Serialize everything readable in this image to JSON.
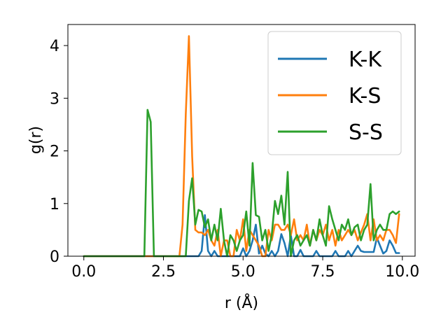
{
  "chart_data": {
    "type": "line",
    "title": "",
    "xlabel": "r (Å)",
    "ylabel": "g(r)",
    "xlim": [
      -0.5,
      10.4
    ],
    "ylim": [
      0,
      4.4
    ],
    "xticks": [
      0.0,
      2.5,
      5.0,
      7.5,
      10.0
    ],
    "xtick_labels": [
      "0.0",
      "2.5",
      "5.0",
      "7.5",
      "10.0"
    ],
    "yticks": [
      0,
      1,
      2,
      3,
      4
    ],
    "ytick_labels": [
      "0",
      "1",
      "2",
      "3",
      "4"
    ],
    "grid": false,
    "legend_position": "top-right",
    "series": [
      {
        "name": "K-K",
        "color": "#1f77b4",
        "x": [
          0.0,
          3.6,
          3.7,
          3.8,
          3.9,
          4.0,
          4.1,
          4.2,
          4.3,
          4.9,
          5.0,
          5.1,
          5.2,
          5.3,
          5.4,
          5.5,
          5.6,
          5.7,
          5.8,
          5.9,
          6.0,
          6.1,
          6.2,
          6.3,
          6.4,
          6.5,
          6.6,
          6.7,
          6.8,
          6.9,
          7.0,
          7.1,
          7.2,
          7.3,
          7.4,
          7.5,
          7.6,
          7.7,
          7.8,
          7.9,
          8.0,
          8.1,
          8.2,
          8.3,
          8.4,
          8.5,
          8.6,
          8.7,
          8.8,
          8.9,
          9.0,
          9.1,
          9.2,
          9.3,
          9.4,
          9.5,
          9.6,
          9.7,
          9.8,
          9.9
        ],
        "values": [
          0.0,
          0.0,
          0.1,
          0.78,
          0.1,
          0.0,
          0.1,
          0.0,
          0.0,
          0.0,
          0.15,
          0.0,
          0.1,
          0.3,
          0.6,
          0.05,
          0.2,
          0.05,
          0.0,
          0.1,
          0.0,
          0.1,
          0.42,
          0.25,
          0.0,
          0.4,
          0.0,
          0.0,
          0.12,
          0.0,
          0.0,
          0.0,
          0.0,
          0.1,
          0.0,
          0.0,
          0.0,
          0.0,
          0.0,
          0.1,
          0.0,
          0.0,
          0.0,
          0.1,
          0.0,
          0.1,
          0.2,
          0.1,
          0.08,
          0.08,
          0.08,
          0.08,
          0.35,
          0.2,
          0.05,
          0.1,
          0.3,
          0.2,
          0.06,
          0.06
        ]
      },
      {
        "name": "K-S",
        "color": "#ff7f0e",
        "x": [
          0.0,
          3.0,
          3.1,
          3.2,
          3.3,
          3.4,
          3.5,
          3.6,
          3.7,
          3.8,
          3.9,
          4.0,
          4.1,
          4.2,
          4.3,
          4.4,
          4.5,
          4.6,
          4.7,
          4.8,
          4.9,
          5.0,
          5.1,
          5.2,
          5.3,
          5.4,
          5.5,
          5.6,
          5.7,
          5.8,
          5.9,
          6.0,
          6.1,
          6.2,
          6.3,
          6.4,
          6.5,
          6.6,
          6.7,
          6.8,
          6.9,
          7.0,
          7.1,
          7.2,
          7.3,
          7.4,
          7.5,
          7.6,
          7.7,
          7.8,
          7.9,
          8.0,
          8.1,
          8.2,
          8.3,
          8.4,
          8.5,
          8.6,
          8.7,
          8.8,
          8.9,
          9.0,
          9.1,
          9.2,
          9.3,
          9.4,
          9.5,
          9.6,
          9.7,
          9.8,
          9.9
        ],
        "values": [
          0.0,
          0.0,
          0.6,
          2.7,
          4.18,
          1.9,
          0.5,
          0.45,
          0.45,
          0.4,
          0.5,
          0.3,
          0.2,
          0.5,
          0.0,
          0.3,
          0.3,
          0.0,
          0.0,
          0.5,
          0.3,
          0.7,
          0.1,
          0.5,
          0.4,
          0.3,
          0.2,
          0.0,
          0.0,
          0.5,
          0.3,
          0.6,
          0.6,
          0.5,
          0.5,
          0.6,
          0.4,
          0.7,
          0.3,
          0.4,
          0.3,
          0.6,
          0.2,
          0.5,
          0.3,
          0.5,
          0.4,
          0.6,
          0.3,
          0.5,
          0.2,
          0.5,
          0.3,
          0.4,
          0.5,
          0.4,
          0.5,
          0.3,
          0.45,
          0.6,
          0.8,
          0.3,
          0.7,
          0.3,
          0.4,
          0.3,
          0.5,
          0.5,
          0.4,
          0.25,
          0.8
        ]
      },
      {
        "name": "S-S",
        "color": "#2ca02c",
        "x": [
          0.0,
          1.9,
          2.0,
          2.1,
          2.2,
          2.3,
          3.2,
          3.3,
          3.4,
          3.5,
          3.6,
          3.7,
          3.8,
          3.9,
          4.0,
          4.1,
          4.2,
          4.3,
          4.4,
          4.5,
          4.6,
          4.7,
          4.8,
          4.9,
          5.0,
          5.1,
          5.2,
          5.3,
          5.4,
          5.5,
          5.6,
          5.7,
          5.8,
          5.9,
          6.0,
          6.1,
          6.2,
          6.3,
          6.4,
          6.5,
          6.6,
          6.7,
          6.8,
          6.9,
          7.0,
          7.1,
          7.2,
          7.3,
          7.4,
          7.5,
          7.6,
          7.7,
          7.8,
          7.9,
          8.0,
          8.1,
          8.2,
          8.3,
          8.4,
          8.5,
          8.6,
          8.7,
          8.8,
          8.9,
          9.0,
          9.1,
          9.2,
          9.3,
          9.4,
          9.5,
          9.6,
          9.7,
          9.8,
          9.9
        ],
        "values": [
          0.0,
          0.0,
          2.78,
          2.55,
          0.0,
          0.0,
          0.0,
          1.05,
          1.48,
          0.6,
          0.88,
          0.85,
          0.55,
          0.7,
          0.3,
          0.6,
          0.3,
          0.9,
          0.3,
          0.0,
          0.4,
          0.3,
          0.1,
          0.3,
          0.4,
          0.85,
          0.2,
          1.77,
          0.78,
          0.75,
          0.3,
          0.5,
          0.1,
          0.4,
          1.05,
          0.8,
          1.15,
          0.6,
          1.6,
          0.0,
          0.3,
          0.4,
          0.2,
          0.3,
          0.4,
          0.2,
          0.5,
          0.3,
          0.7,
          0.4,
          0.2,
          0.95,
          0.7,
          0.5,
          0.3,
          0.6,
          0.5,
          0.7,
          0.4,
          0.55,
          0.6,
          0.3,
          0.5,
          0.6,
          1.37,
          0.3,
          0.5,
          0.6,
          0.5,
          0.5,
          0.8,
          0.85,
          0.8,
          0.85
        ]
      }
    ]
  }
}
